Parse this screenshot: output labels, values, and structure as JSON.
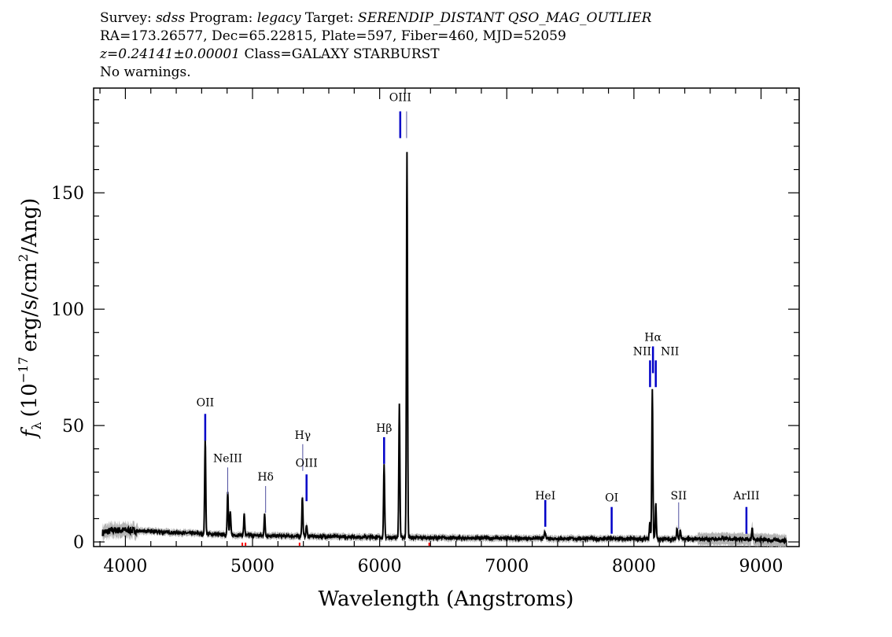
{
  "header": {
    "survey_label": "Survey:",
    "survey": "sdss",
    "program_label": "Program:",
    "program": "legacy",
    "target_label": "Target:",
    "target": "SERENDIP_DISTANT QSO_MAG_OUTLIER",
    "line2": "RA=173.26577, Dec=65.22815, Plate=597, Fiber=460, MJD=52059",
    "redshift": "z=0.24141±0.00001",
    "class_text": "Class=GALAXY STARBURST",
    "warnings": "No warnings."
  },
  "colors": {
    "spectrum": "#000000",
    "error": "#b4b4b4",
    "line_marker": "#0000c8",
    "mask": "#ff0000"
  },
  "chart_data": {
    "type": "line",
    "title": "",
    "xlabel": "Wavelength (Angstroms)",
    "ylabel_prefix": "f",
    "ylabel_sub": "λ",
    "ylabel_unit_a": "(10",
    "ylabel_exp": "−17",
    "ylabel_unit_b": "erg/s/cm",
    "ylabel_sq": "2",
    "ylabel_unit_c": "/Ang)",
    "xlim": [
      3750,
      9300
    ],
    "ylim": [
      -2,
      195
    ],
    "xticks": [
      4000,
      5000,
      6000,
      7000,
      8000,
      9000
    ],
    "yticks": [
      0,
      50,
      100,
      150
    ],
    "continuum": [
      [
        3820,
        4
      ],
      [
        3900,
        5
      ],
      [
        4000,
        5
      ],
      [
        4200,
        4.5
      ],
      [
        4400,
        4
      ],
      [
        4600,
        3.5
      ],
      [
        4800,
        3
      ],
      [
        5000,
        2.8
      ],
      [
        5300,
        2.5
      ],
      [
        5600,
        2.3
      ],
      [
        6000,
        2
      ],
      [
        6400,
        1.8
      ],
      [
        6800,
        1.6
      ],
      [
        7200,
        1.5
      ],
      [
        7600,
        1.4
      ],
      [
        8000,
        1.3
      ],
      [
        8400,
        1.2
      ],
      [
        8800,
        1.3
      ],
      [
        9200,
        0.5
      ]
    ],
    "emission_peaks": [
      {
        "x": 4628,
        "y": 41
      },
      {
        "x": 4805,
        "y": 19
      },
      {
        "x": 4825,
        "y": 10
      },
      {
        "x": 4935,
        "y": 9
      },
      {
        "x": 5095,
        "y": 9
      },
      {
        "x": 5392,
        "y": 17
      },
      {
        "x": 5425,
        "y": 5
      },
      {
        "x": 6035,
        "y": 31
      },
      {
        "x": 6155,
        "y": 57
      },
      {
        "x": 6215,
        "y": 166
      },
      {
        "x": 7300,
        "y": 3
      },
      {
        "x": 8145,
        "y": 64
      },
      {
        "x": 8125,
        "y": 7
      },
      {
        "x": 8172,
        "y": 15
      },
      {
        "x": 8340,
        "y": 5
      },
      {
        "x": 8365,
        "y": 4
      },
      {
        "x": 8930,
        "y": 5
      }
    ],
    "line_labels": [
      {
        "name": "OII",
        "x": 4628,
        "y": 55,
        "label_y": 57,
        "major": true
      },
      {
        "name": "NeIII",
        "x": 4805,
        "y": 32,
        "label_y": 33,
        "major": false
      },
      {
        "name": "Hδ",
        "x": 5103,
        "y": 24,
        "label_y": 25,
        "major": false
      },
      {
        "name": "Hγ",
        "x": 5395,
        "y": 42,
        "label_y": 43,
        "major": false
      },
      {
        "name": "OIII",
        "x": 5425,
        "y": 29,
        "label_y": 31,
        "major": true
      },
      {
        "name": "Hβ",
        "x": 6035,
        "y": 45,
        "label_y": 46,
        "major": true
      },
      {
        "name": "OIII",
        "x": 6162,
        "y": 185,
        "label_y": 188,
        "major": true
      },
      {
        "name": "OIII",
        "x": 6212,
        "y": 185,
        "label_y": 188,
        "major": false
      },
      {
        "name": "HeI",
        "x": 7303,
        "y": 18,
        "label_y": 17,
        "major": true
      },
      {
        "name": "OI",
        "x": 7825,
        "y": 15,
        "label_y": 16,
        "major": true
      },
      {
        "name": "NII",
        "x": 8127,
        "y": 78,
        "label_y": 79,
        "major": true
      },
      {
        "name": "Hα",
        "x": 8150,
        "y": 84,
        "label_y": 85,
        "major": true
      },
      {
        "name": "NII",
        "x": 8172,
        "y": 78,
        "label_y": 79,
        "major": true
      },
      {
        "name": "SII",
        "x": 8352,
        "y": 17,
        "label_y": 17,
        "major": false
      },
      {
        "name": "ArIII",
        "x": 8885,
        "y": 15,
        "label_y": 17,
        "major": true
      }
    ],
    "mask_points": [
      4920,
      4945,
      5370,
      6390
    ]
  }
}
